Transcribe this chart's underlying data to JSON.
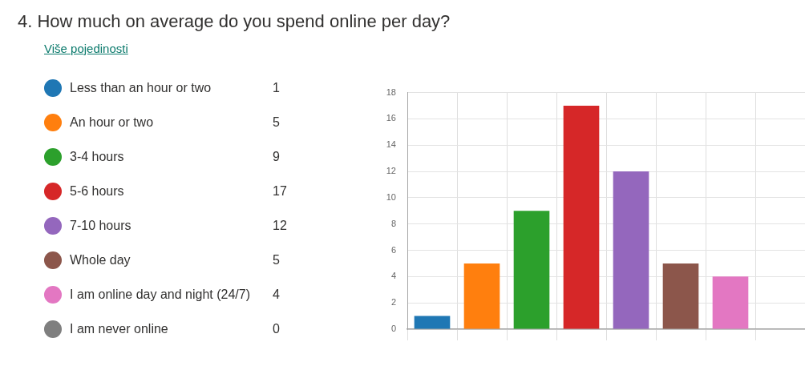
{
  "chart_data": {
    "type": "bar",
    "title": "4. How much on average do you spend online per day?",
    "subtitle": "Više pojedinosti",
    "categories": [
      null,
      null,
      null,
      null,
      null,
      null,
      null,
      null
    ],
    "series": [
      {
        "name": "Less than an hour or two",
        "color": "#1f77b4",
        "values": [
          1,
          null,
          null,
          null,
          null,
          null,
          null,
          null
        ]
      },
      {
        "name": "An hour or two",
        "color": "#ff7f0e",
        "values": [
          null,
          5,
          null,
          null,
          null,
          null,
          null,
          null
        ]
      },
      {
        "name": "3-4 hours",
        "color": "#2ca02c",
        "values": [
          null,
          null,
          9,
          null,
          null,
          null,
          null,
          null
        ]
      },
      {
        "name": "5-6 hours",
        "color": "#d62728",
        "values": [
          null,
          null,
          null,
          17,
          null,
          null,
          null,
          null
        ]
      },
      {
        "name": "7-10 hours",
        "color": "#9467bd",
        "values": [
          null,
          null,
          null,
          null,
          12,
          null,
          null,
          null
        ]
      },
      {
        "name": "Whole day",
        "color": "#8c564b",
        "values": [
          null,
          null,
          null,
          null,
          null,
          5,
          null,
          null
        ]
      },
      {
        "name": "I am online day and night (24/7)",
        "color": "#e377c2",
        "values": [
          null,
          null,
          null,
          null,
          null,
          null,
          4,
          null
        ]
      },
      {
        "name": "I am never online",
        "color": "#7f7f7f",
        "values": [
          null,
          null,
          null,
          null,
          null,
          null,
          null,
          0
        ]
      }
    ],
    "annotations": [
      "1",
      "5",
      "9",
      "17",
      "12",
      "5",
      "4",
      "0"
    ],
    "ylim": [
      0,
      18
    ],
    "yticks": [
      0,
      2,
      4,
      6,
      8,
      10,
      12,
      14,
      16,
      18
    ],
    "grid": true,
    "legend": "left",
    "tick_labels": "y"
  }
}
